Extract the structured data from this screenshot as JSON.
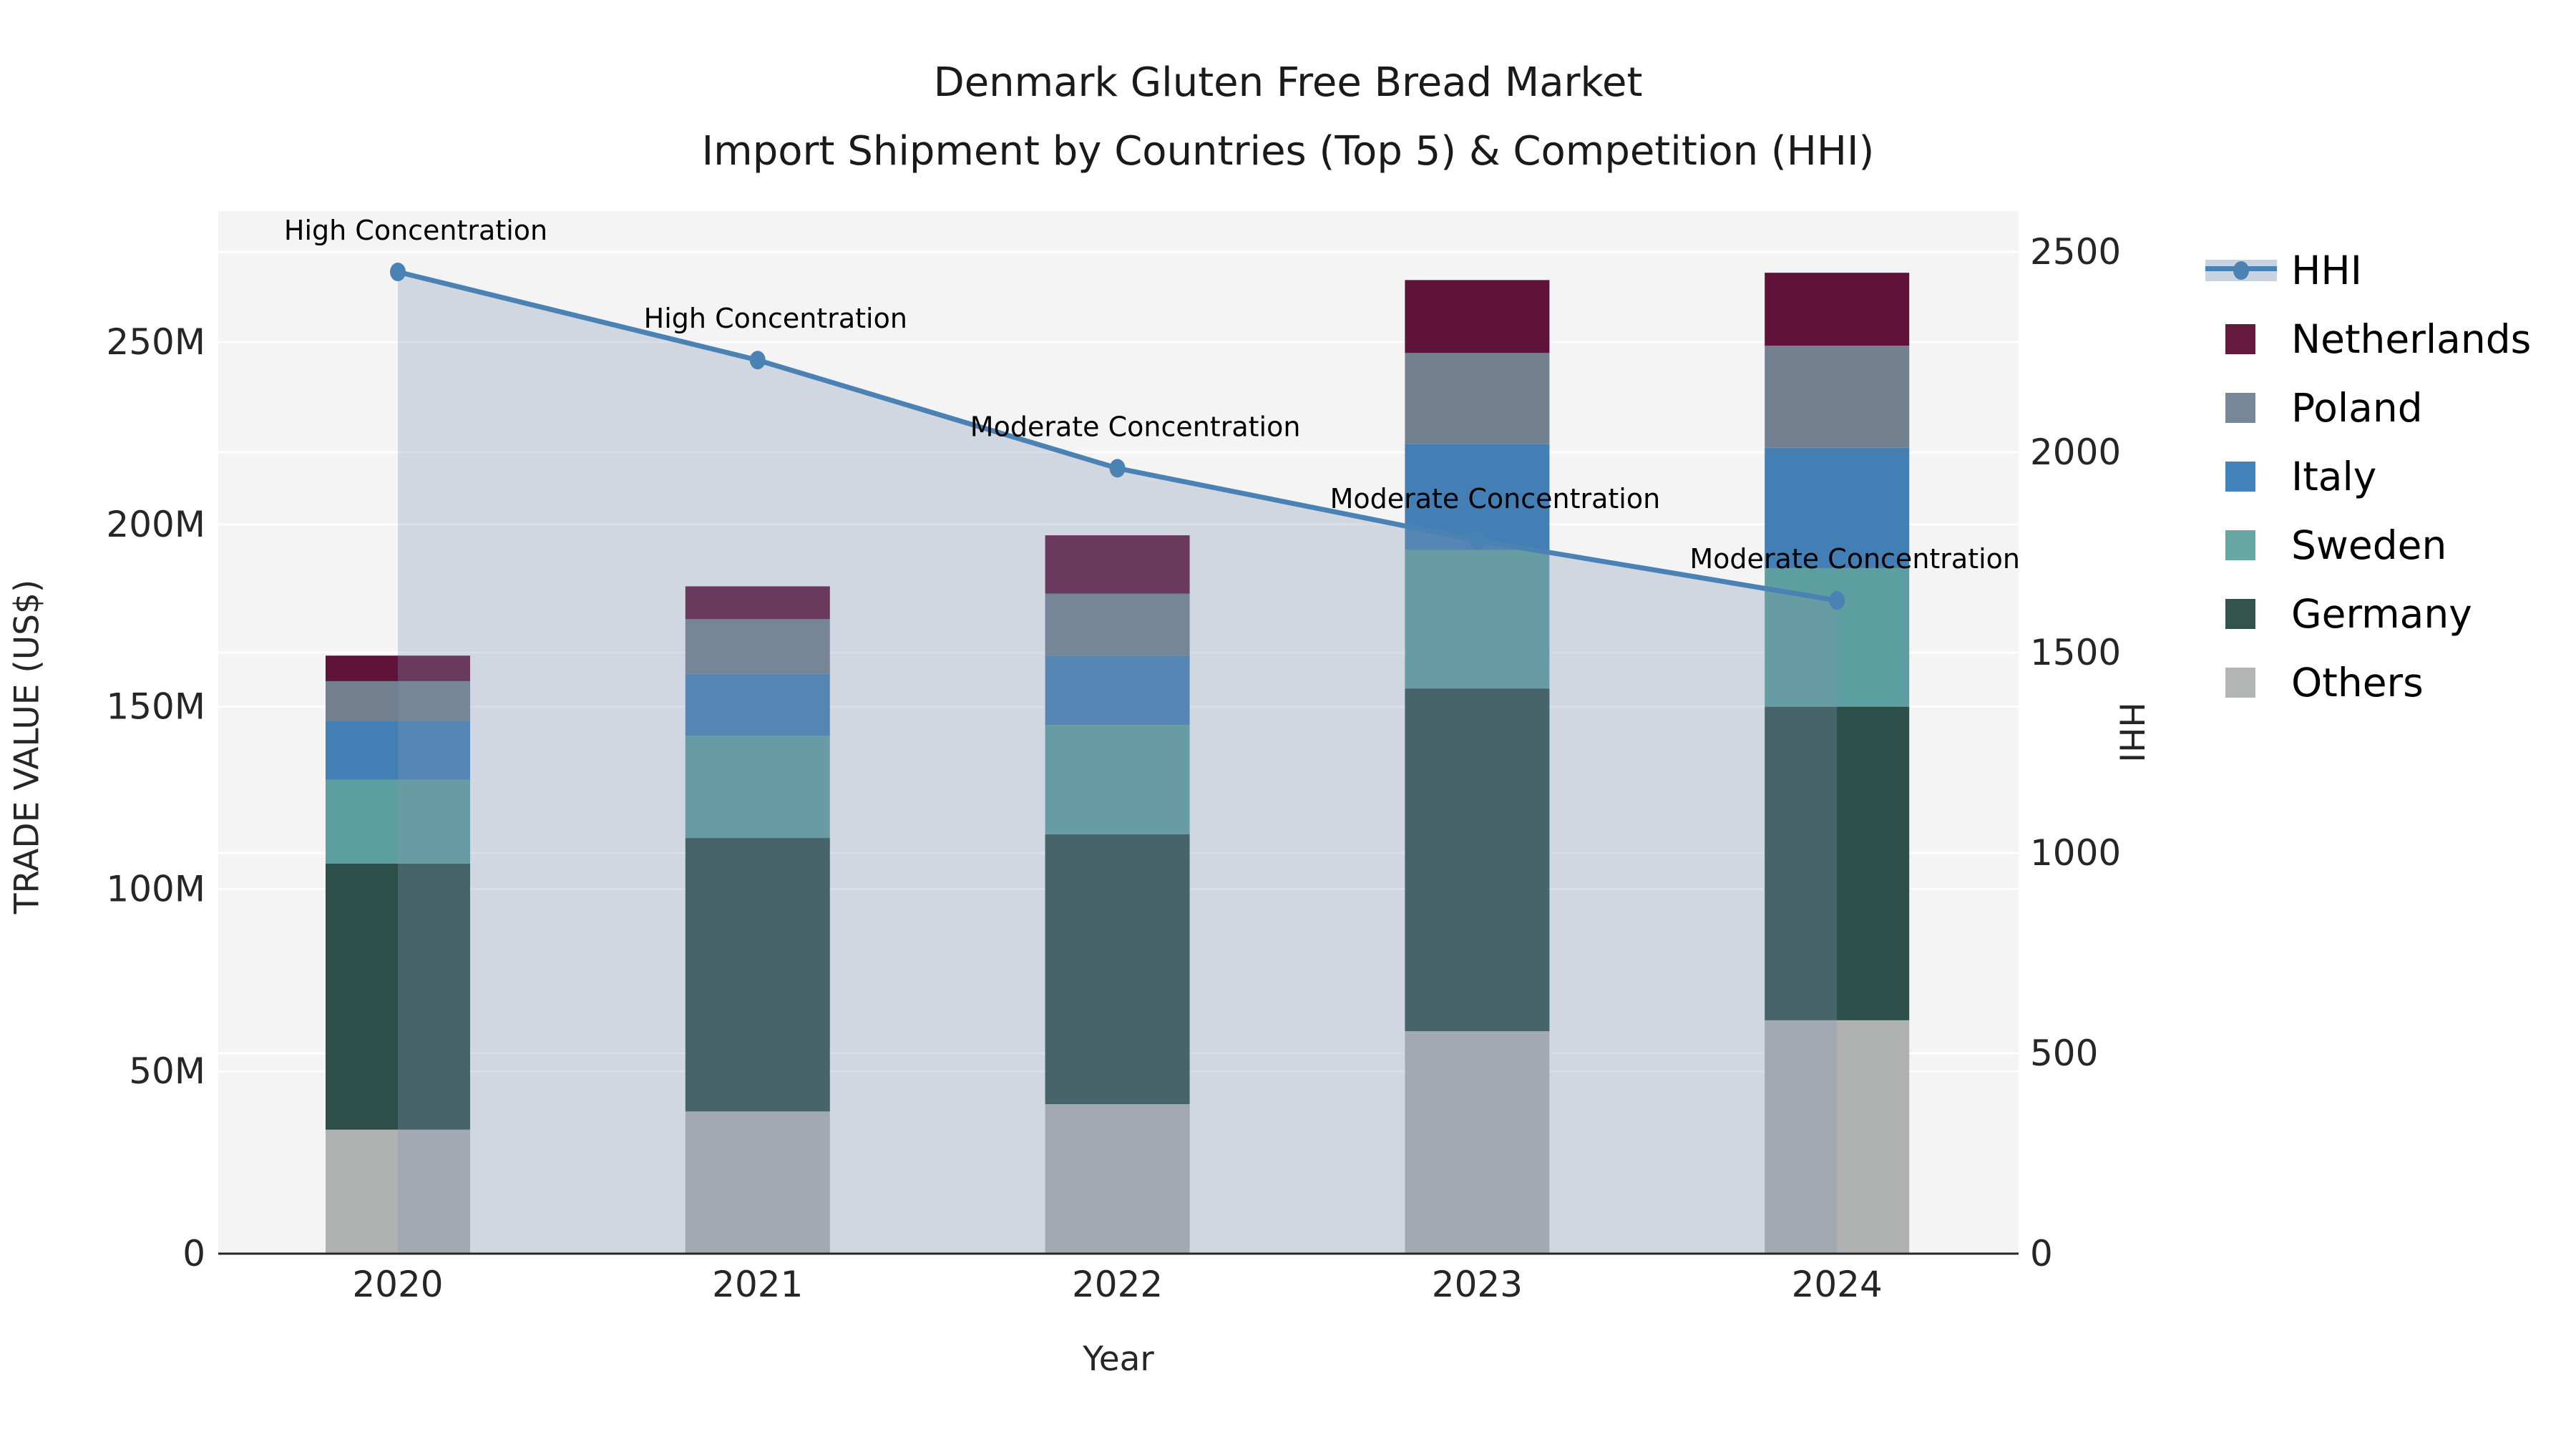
{
  "title": {
    "line1": "Denmark Gluten Free Bread Market",
    "line2": "Import Shipment by Countries (Top 5) & Competition (HHI)"
  },
  "axes": {
    "left_label": "TRADE VALUE (US$)",
    "right_label": "HHI",
    "x_label": "Year",
    "left_ticks": [
      {
        "label": "0",
        "value": 0
      },
      {
        "label": "50M",
        "value": 50
      },
      {
        "label": "100M",
        "value": 100
      },
      {
        "label": "150M",
        "value": 150
      },
      {
        "label": "200M",
        "value": 200
      },
      {
        "label": "250M",
        "value": 250
      }
    ],
    "right_ticks": [
      {
        "label": "0",
        "value": 0
      },
      {
        "label": "500",
        "value": 500
      },
      {
        "label": "1000",
        "value": 1000
      },
      {
        "label": "1500",
        "value": 1500
      },
      {
        "label": "2000",
        "value": 2000
      },
      {
        "label": "2500",
        "value": 2500
      }
    ]
  },
  "legend": {
    "items": [
      {
        "label": "HHI",
        "type": "line",
        "color": "#4a82b4",
        "band": "#c9d2de"
      },
      {
        "label": "Netherlands",
        "type": "swatch",
        "color": "#66193e"
      },
      {
        "label": "Poland",
        "type": "swatch",
        "color": "#78889b"
      },
      {
        "label": "Italy",
        "type": "swatch",
        "color": "#4383bb"
      },
      {
        "label": "Sweden",
        "type": "swatch",
        "color": "#66a7a4"
      },
      {
        "label": "Germany",
        "type": "swatch",
        "color": "#33534d"
      },
      {
        "label": "Others",
        "type": "swatch",
        "color": "#b3b5b5"
      }
    ]
  },
  "chart_data": {
    "type": "bar+line",
    "title": "Denmark Gluten Free Bread Market — Import Shipment by Countries (Top 5) & Competition (HHI)",
    "xlabel": "Year",
    "ylabel_left": "TRADE VALUE (US$)",
    "ylabel_right": "HHI",
    "categories": [
      "2020",
      "2021",
      "2022",
      "2023",
      "2024"
    ],
    "bar_units": "million US$",
    "stack_order_bottom_to_top": [
      "Others",
      "Germany",
      "Sweden",
      "Italy",
      "Poland",
      "Netherlands"
    ],
    "series": [
      {
        "name": "Others",
        "color": "#b0b2b1",
        "values": [
          34,
          39,
          41,
          61,
          64
        ]
      },
      {
        "name": "Germany",
        "color": "#2d4f49",
        "values": [
          73,
          75,
          74,
          94,
          86
        ]
      },
      {
        "name": "Sweden",
        "color": "#5d9fa0",
        "values": [
          23,
          28,
          30,
          38,
          38
        ]
      },
      {
        "name": "Italy",
        "color": "#437fb4",
        "values": [
          16,
          17,
          19,
          29,
          33
        ]
      },
      {
        "name": "Poland",
        "color": "#72808f",
        "values": [
          11,
          15,
          17,
          25,
          28
        ]
      },
      {
        "name": "Netherlands",
        "color": "#5f1339",
        "values": [
          7,
          9,
          16,
          20,
          20
        ]
      }
    ],
    "bar_totals": [
      164,
      183,
      197,
      267,
      269
    ],
    "line_series": {
      "name": "HHI",
      "color": "#4a82b4",
      "area_fill": "rgba(130,150,180,0.3)",
      "values": [
        2450,
        2230,
        1960,
        1780,
        1630
      ],
      "annotations": [
        "High Concentration",
        "High Concentration",
        "Moderate Concentration",
        "Moderate Concentration",
        "Moderate Concentration"
      ]
    },
    "ylim_left": [
      0,
      285
    ],
    "ylim_right": [
      0,
      2600
    ],
    "grid": true,
    "legend_position": "right"
  }
}
